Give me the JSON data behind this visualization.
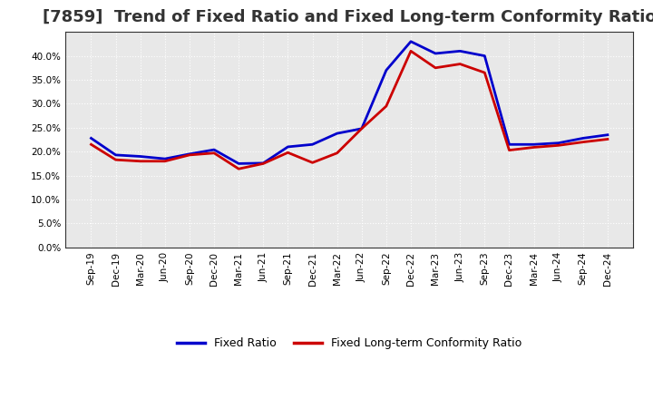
{
  "title": "[7859]  Trend of Fixed Ratio and Fixed Long-term Conformity Ratio",
  "x_labels": [
    "Sep-19",
    "Dec-19",
    "Mar-20",
    "Jun-20",
    "Sep-20",
    "Dec-20",
    "Mar-21",
    "Jun-21",
    "Sep-21",
    "Dec-21",
    "Mar-22",
    "Jun-22",
    "Sep-22",
    "Dec-22",
    "Mar-23",
    "Jun-23",
    "Sep-23",
    "Dec-23",
    "Mar-24",
    "Jun-24",
    "Sep-24",
    "Dec-24"
  ],
  "fixed_ratio": [
    0.228,
    0.193,
    0.19,
    0.185,
    0.195,
    0.204,
    0.175,
    0.176,
    0.21,
    0.215,
    0.238,
    0.248,
    0.37,
    0.43,
    0.405,
    0.41,
    0.4,
    0.215,
    0.215,
    0.218,
    0.228,
    0.235
  ],
  "fixed_lt_ratio": [
    0.215,
    0.183,
    0.18,
    0.18,
    0.193,
    0.197,
    0.164,
    0.175,
    0.198,
    0.177,
    0.197,
    0.248,
    0.295,
    0.41,
    0.375,
    0.383,
    0.365,
    0.203,
    0.209,
    0.213,
    0.22,
    0.226
  ],
  "fixed_ratio_color": "#0000cc",
  "fixed_lt_ratio_color": "#cc0000",
  "background_color": "#ffffff",
  "plot_bg_color": "#e8e8e8",
  "grid_color": "#ffffff",
  "ylim": [
    0.0,
    0.45
  ],
  "yticks": [
    0.0,
    0.05,
    0.1,
    0.15,
    0.2,
    0.25,
    0.3,
    0.35,
    0.4
  ],
  "title_fontsize": 13,
  "legend_labels": [
    "Fixed Ratio",
    "Fixed Long-term Conformity Ratio"
  ],
  "line_width": 2.0
}
